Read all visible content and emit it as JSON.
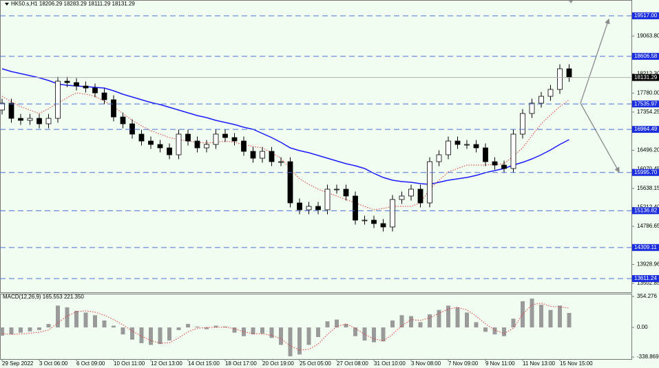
{
  "chart_data": [
    {
      "type": "candlestick",
      "title": "HK50.s,H1  18206.29 18283.29 18111.29 18131.29",
      "categories": [
        "29 Sep 2022",
        null,
        null,
        null,
        "3 Oct 06:00",
        null,
        null,
        null,
        "6 Oct 09:00",
        null,
        null,
        null,
        "10 Oct 11:00",
        null,
        null,
        null,
        "12 Oct 13:00",
        null,
        null,
        null,
        "14 Oct 15:00",
        null,
        null,
        null,
        "18 Oct 17:00",
        null,
        null,
        null,
        "20 Oct 19:00",
        null,
        null,
        null,
        "25 Oct 05:00",
        null,
        null,
        null,
        "27 Oct 08:00",
        null,
        null,
        null,
        "31 Oct 10:00",
        null,
        null,
        null,
        "3 Nov 08:00",
        null,
        null,
        null,
        "7 Nov 09:00",
        null,
        null,
        null,
        "9 Nov 11:00",
        null,
        null,
        null,
        "11 Nov 13:00",
        null,
        null,
        null,
        "15 Nov 15:00",
        null
      ],
      "open": [
        17400,
        17554,
        17213,
        17167,
        17213,
        17090,
        17213,
        18048,
        18017,
        17940,
        17894,
        17785,
        17631,
        17244,
        17090,
        16858,
        16703,
        16626,
        16549,
        16394,
        16858,
        16703,
        16549,
        16626,
        16858,
        16781,
        16703,
        16471,
        16317,
        16471,
        16239,
        16239,
        15312,
        15157,
        15235,
        15157,
        15621,
        15621,
        15467,
        14925,
        14925,
        14848,
        14771,
        15389,
        15467,
        15621,
        15312,
        16239,
        16394,
        16703,
        16626,
        16626,
        16549,
        16239,
        16162,
        16085,
        16858,
        17322,
        17554,
        17708,
        17863,
        18327
      ],
      "high": [
        17654,
        17654,
        17313,
        17313,
        17313,
        17313,
        18148,
        18148,
        18117,
        18040,
        17994,
        17885,
        17731,
        17344,
        17190,
        16958,
        16803,
        16726,
        16649,
        16958,
        16958,
        16803,
        16726,
        16958,
        16958,
        16881,
        16803,
        16571,
        16571,
        16571,
        16339,
        16339,
        15412,
        15335,
        15335,
        15721,
        15721,
        15721,
        15567,
        15025,
        15025,
        14948,
        15489,
        15567,
        15721,
        15721,
        16339,
        16494,
        16803,
        16803,
        16726,
        16726,
        16649,
        16339,
        16262,
        16958,
        17422,
        17654,
        17808,
        17963,
        18427,
        18427
      ],
      "low": [
        17300,
        17113,
        17067,
        17067,
        16990,
        16990,
        17113,
        17917,
        17840,
        17794,
        17685,
        17531,
        17144,
        16990,
        16758,
        16603,
        16526,
        16449,
        16294,
        16294,
        16603,
        16449,
        16449,
        16526,
        16681,
        16603,
        16371,
        16217,
        16217,
        16139,
        16139,
        15212,
        15057,
        15057,
        15057,
        15057,
        15521,
        15367,
        14825,
        14825,
        14748,
        14671,
        14671,
        15289,
        15367,
        15212,
        15212,
        16139,
        16294,
        16526,
        16526,
        16449,
        16139,
        16062,
        15985,
        15985,
        16758,
        17222,
        17454,
        17608,
        17763,
        18031
      ],
      "close": [
        17554,
        17213,
        17167,
        17213,
        17090,
        17213,
        18048,
        18017,
        17940,
        17894,
        17785,
        17631,
        17244,
        17090,
        16858,
        16703,
        16626,
        16549,
        16394,
        16858,
        16703,
        16549,
        16626,
        16858,
        16781,
        16703,
        16471,
        16317,
        16471,
        16239,
        16239,
        15312,
        15157,
        15235,
        15157,
        15621,
        15621,
        15467,
        14925,
        14925,
        14848,
        14771,
        15389,
        15467,
        15621,
        15312,
        16239,
        16394,
        16703,
        16626,
        16626,
        16549,
        16239,
        16162,
        16085,
        16858,
        17322,
        17554,
        17708,
        17863,
        18327,
        18131
      ],
      "lines": [
        {
          "color": "#1a1aff",
          "style": "solid",
          "values": [
            18327,
            18265,
            18218,
            18172,
            18126,
            18064,
            17986,
            17956,
            17940,
            17925,
            17909,
            17894,
            17832,
            17755,
            17693,
            17631,
            17569,
            17523,
            17461,
            17399,
            17337,
            17275,
            17229,
            17167,
            17121,
            17074,
            17012,
            16966,
            16873,
            16781,
            16672,
            16549,
            16487,
            16440,
            16379,
            16317,
            16255,
            16193,
            16147,
            16085,
            15977,
            15884,
            15822,
            15791,
            15776,
            15745,
            15729,
            15776,
            15822,
            15853,
            15884,
            15930,
            15992,
            16038,
            16085,
            16162,
            16224,
            16301,
            16394,
            16502,
            16626,
            16734
          ]
        },
        {
          "color": "#e03030",
          "style": "dotted",
          "values": [
            17708,
            17584,
            17476,
            17399,
            17322,
            17430,
            17554,
            17677,
            17785,
            17755,
            17708,
            17600,
            17476,
            17322,
            17167,
            17043,
            16935,
            16858,
            16781,
            16734,
            16703,
            16672,
            16657,
            16672,
            16703,
            16672,
            16626,
            16580,
            16549,
            16440,
            16317,
            16085,
            15853,
            15729,
            15621,
            15544,
            15467,
            15389,
            15312,
            15235,
            15157,
            15188,
            15235,
            15235,
            15235,
            15312,
            15621,
            15822,
            16008,
            16085,
            16162,
            16162,
            16162,
            16178,
            16193,
            16363,
            16549,
            16827,
            17090,
            17291,
            17476,
            17631
          ]
        }
      ],
      "ylim": [
        13302,
        19873
      ],
      "yticks": [
        {
          "value": 19063.8,
          "label": "19063.80"
        },
        {
          "value": 18212.3,
          "label": "18212.30"
        },
        {
          "value": 17780.0,
          "label": "17780.00"
        },
        17354.25,
        {
          "value": 16496.2,
          "label": "16496.20"
        },
        16070.45,
        15638.15,
        {
          "value": 15212.4,
          "label": "15212.40"
        },
        14786.65,
        13928.96,
        13502.85
      ],
      "levels": [
        {
          "value": 19517.0,
          "label": "19517.00"
        },
        {
          "value": 18606.58,
          "label": "18606.58"
        },
        {
          "value": 17535.97,
          "label": "17535.97"
        },
        {
          "value": 16964.49,
          "label": "16964.49"
        },
        {
          "value": 15995.7,
          "label": "15995.70"
        },
        {
          "value": 15136.82,
          "label": "15136.82"
        },
        {
          "value": 14309.11,
          "label": "14309.11"
        },
        {
          "value": 13611.24,
          "label": "13611.24"
        }
      ],
      "level_color": "#4a6fd6",
      "current_price": {
        "value": 18131.29,
        "label": "18131.29"
      }
    },
    {
      "type": "bar",
      "title": "MACD(12,26,9) 165.553 221.350",
      "values": [
        -95,
        -80,
        -60,
        -45,
        -30,
        40,
        250,
        230,
        190,
        170,
        140,
        80,
        20,
        -80,
        -140,
        -180,
        -200,
        -190,
        -150,
        -30,
        40,
        10,
        -20,
        20,
        10,
        -60,
        -100,
        -80,
        -70,
        -120,
        -200,
        -330,
        -310,
        -200,
        -110,
        70,
        90,
        40,
        -100,
        -150,
        -170,
        -160,
        80,
        140,
        130,
        60,
        150,
        200,
        250,
        230,
        170,
        60,
        -50,
        -80,
        -100,
        100,
        300,
        330,
        260,
        200,
        250,
        166
      ],
      "color": "#9a9a9a",
      "signal": {
        "color": "#e03030",
        "style": "dotted",
        "values": [
          -70,
          -80,
          -75,
          -65,
          -55,
          -30,
          50,
          130,
          180,
          190,
          175,
          140,
          90,
          30,
          -40,
          -100,
          -150,
          -180,
          -175,
          -120,
          -50,
          -10,
          0,
          0,
          5,
          -15,
          -50,
          -70,
          -75,
          -90,
          -130,
          -210,
          -260,
          -250,
          -190,
          -80,
          10,
          40,
          -10,
          -80,
          -130,
          -155,
          -80,
          20,
          90,
          80,
          110,
          160,
          210,
          230,
          200,
          130,
          40,
          -30,
          -70,
          -10,
          150,
          260,
          280,
          240,
          235,
          221
        ]
      },
      "ylim": [
        -362,
        386
      ],
      "yticks": [
        354.276,
        {
          "value": 0,
          "label": "0.00"
        },
        -338.869
      ]
    }
  ]
}
